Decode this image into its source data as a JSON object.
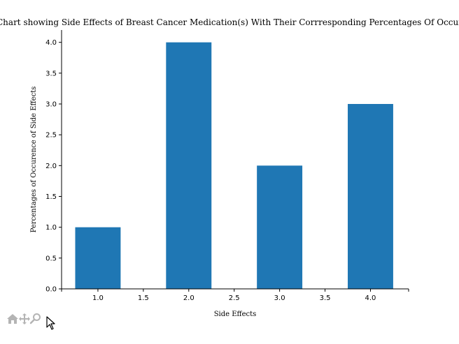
{
  "chart_data": {
    "type": "bar",
    "title": "Chart showing Side Effects of Breast Cancer Medication(s) With Their Corrresponding Percentages Of Occurence",
    "xlabel": "Side Effects",
    "ylabel": "Percentages of Occurence of Side Effects",
    "x": [
      1.0,
      2.0,
      3.0,
      4.0
    ],
    "values": [
      1.0,
      4.0,
      2.0,
      3.0
    ],
    "bar_width": 0.5,
    "xlim": [
      0.6,
      4.42
    ],
    "ylim": [
      0.0,
      4.2
    ],
    "xticks": [
      1.0,
      1.5,
      2.0,
      2.5,
      3.0,
      3.5,
      4.0
    ],
    "xtick_labels": [
      "1.0",
      "1.5",
      "2.0",
      "2.5",
      "3.0",
      "3.5",
      "4.0"
    ],
    "yticks": [
      0.0,
      0.5,
      1.0,
      1.5,
      2.0,
      2.5,
      3.0,
      3.5,
      4.0
    ],
    "ytick_labels": [
      "0.0",
      "0.5",
      "1.0",
      "1.5",
      "2.0",
      "2.5",
      "3.0",
      "3.5",
      "4.0"
    ],
    "bar_color": "#1f77b4",
    "grid": false,
    "legend": "none"
  },
  "toolbar": {
    "tools": [
      "home-icon",
      "pan-icon",
      "zoom-icon"
    ]
  }
}
